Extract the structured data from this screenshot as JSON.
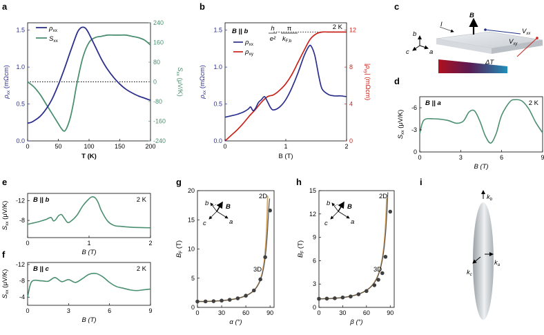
{
  "colors": {
    "blue": "#2b2f8c",
    "green": "#4a8f6f",
    "red": "#c8231b",
    "tan": "#d7a45c",
    "dot": "#3f3f3f"
  },
  "panels": [
    {
      "id": "a",
      "label": "a"
    },
    {
      "id": "b",
      "label": "b"
    },
    {
      "id": "c",
      "label": "c"
    },
    {
      "id": "d",
      "label": "d"
    },
    {
      "id": "e",
      "label": "e"
    },
    {
      "id": "f",
      "label": "f"
    },
    {
      "id": "g",
      "label": "g"
    },
    {
      "id": "h",
      "label": "h"
    },
    {
      "id": "i",
      "label": "i"
    }
  ],
  "schematic_c": {
    "field_label": "B",
    "current_label": "I",
    "vxx_label": "V",
    "vxx_sub": "xx",
    "vxy_label": "V",
    "vxy_sub": "xy",
    "gradient_label": "ΔT",
    "axis_a": "a",
    "axis_b": "b",
    "axis_c": "c"
  },
  "schematic_i": {
    "ka": "k",
    "ka_sub": "a",
    "kb": "k",
    "kb_sub": "b",
    "kc": "k",
    "kc_sub": "c"
  },
  "chart_data": [
    {
      "panel": "a",
      "type": "line",
      "xlabel": "T (K)",
      "ylabel_left": "ρ",
      "ylabel_left_sub": "xx",
      "ylabel_left_unit": " (mΩcm)",
      "ylabel_right": "S",
      "ylabel_right_sub": "xx",
      "ylabel_right_unit": " (μV/K)",
      "xlim": [
        0,
        200
      ],
      "ylim_left": [
        0,
        1.6
      ],
      "ylim_right": [
        -240,
        240
      ],
      "xticks": [
        "0",
        "50",
        "100",
        "150",
        "200"
      ],
      "yticks_left": [
        "0.0",
        "0.5",
        "1.0",
        "1.5"
      ],
      "yticks_right": [
        "-240",
        "-160",
        "-80",
        "0",
        "80",
        "160",
        "240"
      ],
      "legend": [
        {
          "name": "ρ",
          "sub": "xx"
        },
        {
          "name": "S",
          "sub": "xx"
        }
      ],
      "reference_line": {
        "axis": "right",
        "value": 0,
        "style": "dotted"
      },
      "series": [
        {
          "name": "ρxx",
          "axis": "left",
          "color_key": "blue",
          "x": [
            0,
            5,
            10,
            20,
            30,
            40,
            50,
            60,
            70,
            80,
            85,
            90,
            95,
            100,
            110,
            120,
            130,
            140,
            150,
            160,
            170,
            180,
            190,
            200
          ],
          "y": [
            0.24,
            0.25,
            0.27,
            0.33,
            0.43,
            0.57,
            0.76,
            0.98,
            1.22,
            1.45,
            1.52,
            1.54,
            1.52,
            1.45,
            1.28,
            1.11,
            0.97,
            0.86,
            0.77,
            0.7,
            0.65,
            0.61,
            0.58,
            0.55
          ]
        },
        {
          "name": "Sxx",
          "axis": "right",
          "color_key": "green",
          "x": [
            0,
            10,
            20,
            30,
            40,
            50,
            55,
            60,
            65,
            70,
            75,
            80,
            90,
            100,
            110,
            120,
            130,
            140,
            150,
            160,
            170,
            180,
            190,
            200
          ],
          "y": [
            0,
            -20,
            -50,
            -90,
            -130,
            -170,
            -190,
            -200,
            -180,
            -140,
            -80,
            -10,
            100,
            160,
            180,
            185,
            190,
            190,
            190,
            190,
            185,
            180,
            170,
            150
          ]
        }
      ]
    },
    {
      "panel": "b",
      "type": "line",
      "xlabel": "B (T)",
      "ylabel_left": "ρ",
      "ylabel_left_sub": "xx",
      "ylabel_left_unit": " (mΩcm)",
      "ylabel_right": "|ρ",
      "ylabel_right_sub": "xy",
      "ylabel_right_unit": "| (mΩcm)",
      "xlim": [
        0,
        2
      ],
      "ylim_left": [
        0,
        1.6
      ],
      "ylim_right": [
        0,
        12.8
      ],
      "xticks": [
        "0",
        "1",
        "2"
      ],
      "yticks_left": [
        "0.0",
        "0.5",
        "1.0",
        "1.5"
      ],
      "yticks_right": [
        "0",
        "4",
        "8",
        "12"
      ],
      "field_dir": "B || b",
      "temperature": "2 K",
      "formula": {
        "num1": "h",
        "den1": "e²",
        "num2": "π",
        "den2": "k",
        "den2_sub": "F,b"
      },
      "legend": [
        {
          "name": "ρ",
          "sub": "xx"
        },
        {
          "name": "ρ",
          "sub": "xy"
        }
      ],
      "reference_line": {
        "axis": "right",
        "value": 11.8,
        "style": "dotted",
        "x_from": 0.8,
        "x_to": 2.0
      },
      "series": [
        {
          "name": "ρxx",
          "axis": "left",
          "color_key": "blue",
          "x": [
            0,
            0.1,
            0.2,
            0.3,
            0.38,
            0.42,
            0.46,
            0.5,
            0.55,
            0.6,
            0.65,
            0.7,
            0.75,
            0.8,
            0.9,
            1.0,
            1.1,
            1.2,
            1.3,
            1.38,
            1.42,
            1.48,
            1.55,
            1.6,
            1.7,
            1.8,
            1.9,
            2.0
          ],
          "y": [
            0.32,
            0.34,
            0.36,
            0.39,
            0.43,
            0.46,
            0.41,
            0.44,
            0.52,
            0.56,
            0.6,
            0.53,
            0.45,
            0.42,
            0.46,
            0.56,
            0.72,
            0.92,
            1.15,
            1.28,
            1.28,
            1.15,
            0.85,
            0.7,
            0.63,
            0.61,
            0.61,
            0.6
          ]
        },
        {
          "name": "ρxy",
          "axis": "right",
          "color_key": "red",
          "x": [
            0,
            0.1,
            0.2,
            0.3,
            0.4,
            0.5,
            0.6,
            0.7,
            0.8,
            0.9,
            1.0,
            1.1,
            1.2,
            1.3,
            1.4,
            1.5,
            1.6,
            1.7,
            1.8,
            1.9,
            2.0
          ],
          "y": [
            0,
            0.6,
            1.2,
            1.9,
            2.7,
            3.4,
            4.2,
            4.8,
            5.0,
            5.5,
            6.2,
            7.2,
            8.5,
            9.8,
            11.0,
            11.6,
            11.8,
            11.8,
            11.8,
            11.8,
            11.8
          ]
        }
      ]
    },
    {
      "panel": "d",
      "type": "line",
      "xlabel": "B (T)",
      "ylabel": "S",
      "ylabel_sub": "xx",
      "ylabel_unit": " (μV/K)",
      "xlim": [
        0,
        9
      ],
      "ylim": [
        -7.5,
        0
      ],
      "inverted_y": true,
      "xticks": [
        "0",
        "3",
        "6",
        "9"
      ],
      "yticks": [
        "-6",
        "-3",
        "0"
      ],
      "field_dir": "B || a",
      "temperature": "2 K",
      "series": [
        {
          "name": "Sxx",
          "color_key": "green",
          "x": [
            0,
            0.3,
            1.0,
            2.0,
            2.7,
            3.2,
            3.6,
            4.0,
            4.4,
            4.8,
            5.2,
            5.6,
            6.0,
            6.6,
            7.0,
            7.5,
            8.0,
            8.5,
            9.0
          ],
          "y": [
            -2.5,
            -4.3,
            -4.5,
            -4.3,
            -3.9,
            -4.2,
            -5.4,
            -5.6,
            -4.2,
            -2.2,
            -1.2,
            -2.5,
            -5.0,
            -6.8,
            -7.1,
            -6.9,
            -5.8,
            -4.0,
            -2.6
          ]
        }
      ]
    },
    {
      "panel": "e",
      "type": "line",
      "xlabel": "B (T)",
      "ylabel": "S",
      "ylabel_sub": "xx",
      "ylabel_unit": " (μV/K)",
      "xlim": [
        0,
        2
      ],
      "ylim": [
        -13.5,
        -4.5
      ],
      "inverted_y": true,
      "xticks": [
        "0",
        "1",
        "2"
      ],
      "yticks": [
        "-12",
        "-8"
      ],
      "field_dir": "B || b",
      "temperature": "2 K",
      "series": [
        {
          "name": "Sxx",
          "color_key": "green",
          "x": [
            0,
            0.1,
            0.2,
            0.3,
            0.38,
            0.42,
            0.46,
            0.5,
            0.55,
            0.6,
            0.65,
            0.7,
            0.8,
            0.9,
            1.0,
            1.05,
            1.1,
            1.15,
            1.2,
            1.3,
            1.4,
            1.5,
            1.7,
            2.0
          ],
          "y": [
            -7.2,
            -7.5,
            -7.8,
            -8.2,
            -8.6,
            -7.9,
            -8.2,
            -8.9,
            -9.2,
            -8.4,
            -7.6,
            -7.8,
            -9.0,
            -11.0,
            -12.4,
            -12.8,
            -12.6,
            -11.6,
            -10.0,
            -7.9,
            -7.0,
            -6.8,
            -6.6,
            -6.5
          ]
        }
      ]
    },
    {
      "panel": "f",
      "type": "line",
      "xlabel": "B (T)",
      "ylabel": "S",
      "ylabel_sub": "xx",
      "ylabel_unit": " (μV/K)",
      "xlim": [
        0,
        9
      ],
      "ylim": [
        -12.5,
        -2
      ],
      "inverted_y": true,
      "xticks": [
        "0",
        "3",
        "6",
        "9"
      ],
      "yticks": [
        "-12",
        "-8",
        "-4"
      ],
      "field_dir": "B || c",
      "temperature": "2 K",
      "series": [
        {
          "name": "Sxx",
          "color_key": "green",
          "x": [
            0,
            0.3,
            1.0,
            1.5,
            2.0,
            2.5,
            3.0,
            3.5,
            4.0,
            4.5,
            5.0,
            5.5,
            6.0,
            6.5,
            7.0,
            7.5,
            8.0,
            8.5,
            9.0
          ],
          "y": [
            -4.0,
            -7.8,
            -8.0,
            -7.9,
            -8.8,
            -7.8,
            -8.3,
            -7.6,
            -8.5,
            -9.6,
            -9.8,
            -9.0,
            -7.6,
            -6.6,
            -6.2,
            -5.8,
            -5.6,
            -5.8,
            -6.0
          ]
        }
      ]
    },
    {
      "panel": "g",
      "type": "scatter",
      "xlabel": "α (°)",
      "ylabel": "B",
      "ylabel_sub": "F",
      "ylabel_unit": " (T)",
      "xlim": [
        0,
        95
      ],
      "ylim": [
        0,
        20
      ],
      "xticks": [
        "0",
        "30",
        "60",
        "90"
      ],
      "yticks": [
        "0",
        "5",
        "10",
        "15",
        "20"
      ],
      "fit_labels": {
        "line_2d": "2D",
        "line_3d": "3D"
      },
      "inset": {
        "a": "a",
        "b": "b",
        "c": "c",
        "B": "B"
      },
      "points": {
        "x": [
          0,
          10,
          20,
          30,
          40,
          50,
          60,
          70,
          78,
          84,
          90
        ],
        "y": [
          1.0,
          1.02,
          1.06,
          1.16,
          1.3,
          1.55,
          2.0,
          2.9,
          4.8,
          8.6,
          16.6
        ]
      }
    },
    {
      "panel": "h",
      "type": "scatter",
      "xlabel": "β (°)",
      "ylabel": "B",
      "ylabel_sub": "F",
      "ylabel_unit": " (T)",
      "xlim": [
        0,
        95
      ],
      "ylim": [
        0,
        15
      ],
      "xticks": [
        "0",
        "30",
        "60",
        "90"
      ],
      "yticks": [
        "0",
        "3",
        "6",
        "9",
        "12",
        "15"
      ],
      "fit_labels": {
        "line_2d": "2D",
        "line_3d": "3D"
      },
      "inset": {
        "a": "a",
        "b": "b",
        "c": "c",
        "B": "B"
      },
      "points": {
        "x": [
          0,
          10,
          20,
          30,
          40,
          50,
          60,
          70,
          75,
          80,
          84,
          90
        ],
        "y": [
          1.1,
          1.13,
          1.17,
          1.27,
          1.4,
          1.68,
          2.1,
          2.85,
          3.55,
          4.4,
          6.5,
          12.3
        ]
      }
    }
  ]
}
